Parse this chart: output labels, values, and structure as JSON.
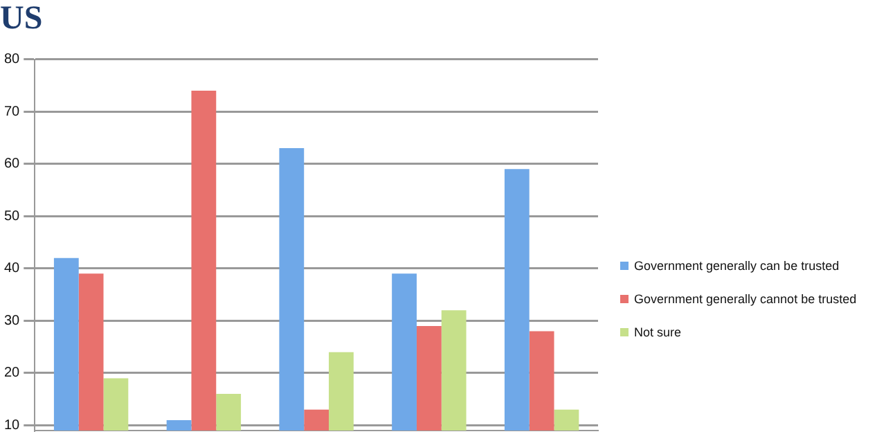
{
  "chart_data": {
    "type": "bar",
    "title": "US",
    "categories": [
      null,
      null,
      null,
      null,
      null
    ],
    "series": [
      {
        "name": "Government generally can be trusted",
        "color": "#6fa8e8",
        "values": [
          42,
          11,
          63,
          39,
          59
        ]
      },
      {
        "name": "Government generally cannot be trusted",
        "color": "#e8716d",
        "values": [
          39,
          74,
          13,
          29,
          28
        ]
      },
      {
        "name": "Not sure",
        "color": "#c6e08a",
        "values": [
          19,
          16,
          24,
          32,
          13
        ]
      }
    ],
    "ylim": [
      9,
      80
    ],
    "yticks": [
      10,
      20,
      30,
      40,
      50,
      60,
      70,
      80
    ],
    "grid": "y",
    "legend": "right",
    "tick_labels": "y"
  }
}
